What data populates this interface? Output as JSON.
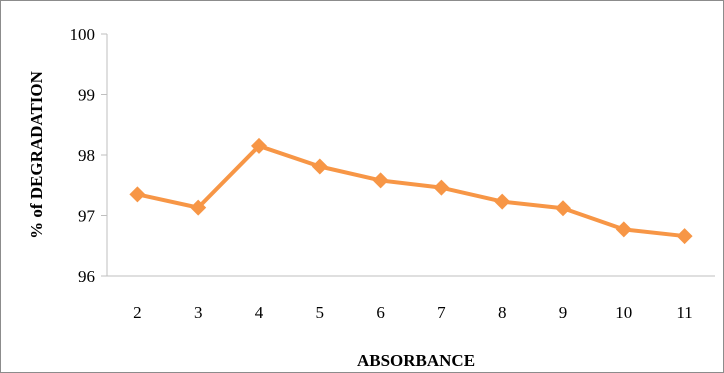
{
  "chart_data": {
    "type": "line",
    "categories": [
      "2",
      "3",
      "4",
      "5",
      "6",
      "7",
      "8",
      "9",
      "10",
      "11"
    ],
    "series": [
      {
        "values": [
          97.35,
          97.13,
          98.15,
          97.81,
          97.58,
          97.46,
          97.23,
          97.12,
          96.77,
          96.66
        ],
        "color": "#f79646"
      }
    ],
    "xlabel": "ABSORBANCE",
    "ylabel": "% of DEGRADATION",
    "ylim": [
      96,
      100
    ],
    "yticks": [
      "96",
      "97",
      "98",
      "99",
      "100"
    ],
    "grid": false,
    "marker": "diamond",
    "legend": "none"
  }
}
